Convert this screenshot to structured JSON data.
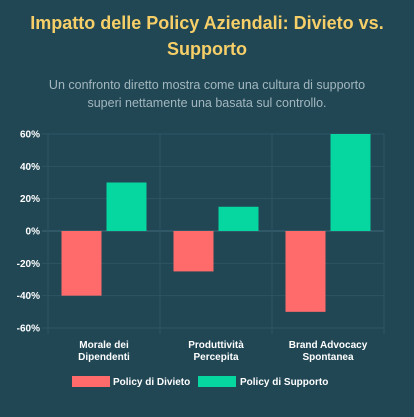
{
  "header": {
    "title_line1": "Impatto delle Policy Aziendali: Divieto vs.",
    "title_line2": "Supporto",
    "subtitle_line1": "Un confronto diretto mostra come una cultura di supporto",
    "subtitle_line2": "superi nettamente una basata sul controllo."
  },
  "chart_data": {
    "type": "bar",
    "categories": [
      [
        "Morale dei",
        "Dipendenti"
      ],
      [
        "Produttività",
        "Percepita"
      ],
      [
        "Brand Advocacy",
        "Spontanea"
      ]
    ],
    "series": [
      {
        "name": "Policy di Divieto",
        "values": [
          -40,
          -25,
          -50
        ],
        "color": "#ff6b6b"
      },
      {
        "name": "Policy di Supporto",
        "values": [
          30,
          15,
          60
        ],
        "color": "#06d6a0"
      }
    ],
    "ylim": [
      -60,
      60
    ],
    "yticks": [
      60,
      40,
      20,
      0,
      -20,
      -40,
      -60
    ],
    "tick_suffix": "%",
    "grid": true,
    "legend": "bottom"
  }
}
